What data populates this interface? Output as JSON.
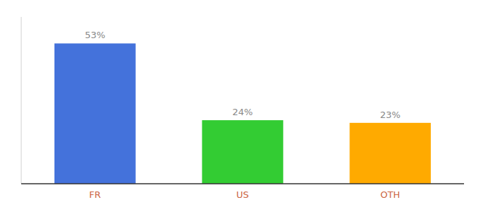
{
  "chart_data": {
    "type": "bar",
    "categories": [
      "FR",
      "US",
      "OTH"
    ],
    "values": [
      53,
      24,
      23
    ],
    "colors": [
      "#4472db",
      "#33cc33",
      "#ffaa00"
    ],
    "data_labels": true,
    "value_labels": [
      "53%",
      "24%",
      "23%"
    ],
    "ylim": [
      0,
      63
    ],
    "tick_labels": "x",
    "grid": false
  }
}
